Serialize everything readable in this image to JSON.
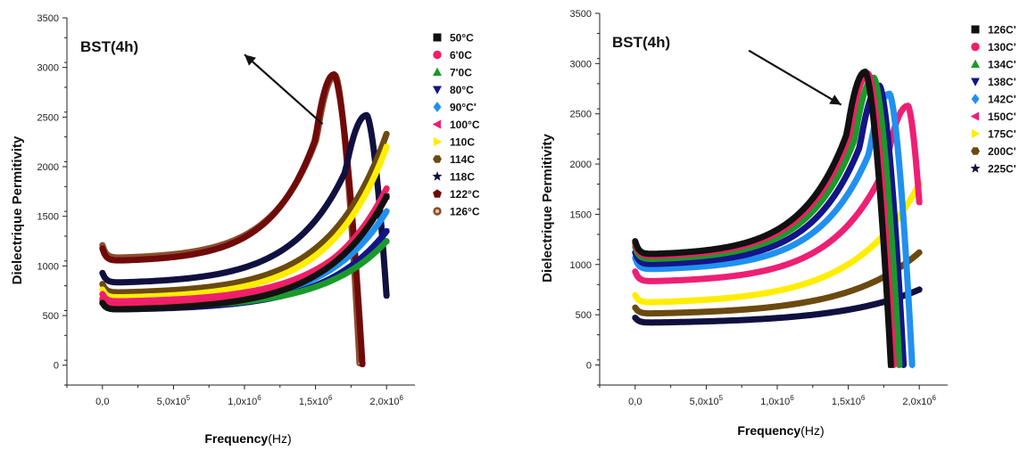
{
  "chart_data": [
    {
      "type": "line",
      "title": "BST(4h)",
      "xlabel_main": "Frequency",
      "xlabel_unit": "(Hz)",
      "ylabel": "Dielectrique Permitivity",
      "xlim": [
        -250000,
        2200000
      ],
      "ylim": [
        -200,
        3500
      ],
      "x_ticks": [
        {
          "value": 0,
          "label": "0,0"
        },
        {
          "value": 500000,
          "label": "5,0x10",
          "exp": "5"
        },
        {
          "value": 1000000,
          "label": "1,0x10",
          "exp": "6"
        },
        {
          "value": 1500000,
          "label": "1,5x10",
          "exp": "6"
        },
        {
          "value": 2000000,
          "label": "2,0x10",
          "exp": "6"
        }
      ],
      "y_ticks": [
        0,
        500,
        1000,
        1500,
        2000,
        2500,
        3000,
        3500
      ],
      "arrow": {
        "from": [
          1550000,
          2430
        ],
        "to": [
          1000000,
          3130
        ]
      },
      "series": [
        {
          "name": "50°C",
          "marker": "square",
          "color": "#111111",
          "base": 560,
          "rise": 1.12,
          "end_value": 1700,
          "xpeak": 2000000
        },
        {
          "name": "6'0C",
          "marker": "circle",
          "color": "#ee2060",
          "base": 600,
          "rise": 1.15,
          "end_value": 1780,
          "xpeak": 2000000
        },
        {
          "name": "7'0C",
          "marker": "triangle-up",
          "color": "#1a9a2a",
          "base": 580,
          "rise": 1.09,
          "end_value": 1250,
          "xpeak": 2000000
        },
        {
          "name": "80°C",
          "marker": "triangle-down",
          "color": "#141488",
          "base": 560,
          "rise": 1.1,
          "end_value": 1350,
          "xpeak": 2000000
        },
        {
          "name": "90°C'",
          "marker": "diamond",
          "color": "#2090f0",
          "base": 590,
          "rise": 1.13,
          "end_value": 1550,
          "xpeak": 2000000
        },
        {
          "name": "100°C",
          "marker": "triangle-left",
          "color": "#ee1f75",
          "base": 640,
          "rise": 1.12,
          "end_value": 1700,
          "xpeak": 2000000
        },
        {
          "name": "110C",
          "marker": "triangle-right",
          "color": "#ffee00",
          "base": 680,
          "rise": 1.2,
          "end_value": 2200,
          "xpeak": 2000000
        },
        {
          "name": "114C",
          "marker": "hexagon",
          "color": "#6b4a10",
          "base": 730,
          "rise": 1.2,
          "end_value": 2330,
          "xpeak": 2000000
        },
        {
          "name": "118C",
          "marker": "star",
          "color": "#101040",
          "base": 830,
          "rise": 1.2,
          "peak_value": 2520,
          "xpeak": 1860000,
          "x_end": 2000000,
          "end_value": 700
        },
        {
          "name": "122°C",
          "marker": "pentagon",
          "color": "#700a0a",
          "base": 1050,
          "rise": 1.25,
          "peak_value": 2930,
          "xpeak": 1630000,
          "x_end": 1830000,
          "end_value": 10
        },
        {
          "name": "126°C",
          "marker": "circle-dot",
          "color": "#8a5030",
          "base": 1080,
          "rise": 1.25,
          "peak_value": 2920,
          "xpeak": 1640000,
          "x_end": 1810000,
          "end_value": 20
        }
      ]
    },
    {
      "type": "line",
      "title": "BST(4h)",
      "xlabel_main": "Frequency",
      "xlabel_unit": "(Hz)",
      "ylabel": "Dielectrique Permitivity",
      "xlim": [
        -250000,
        2200000
      ],
      "ylim": [
        -200,
        3500
      ],
      "x_ticks": [
        {
          "value": 0,
          "label": "0,0"
        },
        {
          "value": 500000,
          "label": "5,0x10",
          "exp": "5"
        },
        {
          "value": 1000000,
          "label": "1,0x10",
          "exp": "6"
        },
        {
          "value": 1500000,
          "label": "1,5x10",
          "exp": "6"
        },
        {
          "value": 2000000,
          "label": "2,0x10",
          "exp": "6"
        }
      ],
      "y_ticks": [
        0,
        500,
        1000,
        1500,
        2000,
        2500,
        3000,
        3500
      ],
      "arrow": {
        "from": [
          800000,
          3130
        ],
        "to": [
          1450000,
          2590
        ]
      },
      "series": [
        {
          "name": "126C'",
          "marker": "square",
          "color": "#111111",
          "base": 1100,
          "rise": 1.22,
          "peak_value": 2920,
          "xpeak": 1620000,
          "x_end": 1800000,
          "end_value": 0
        },
        {
          "name": "130C'",
          "marker": "circle",
          "color": "#ee2060",
          "base": 1080,
          "rise": 1.22,
          "peak_value": 2900,
          "xpeak": 1640000,
          "x_end": 1820000,
          "end_value": 0
        },
        {
          "name": "134C'",
          "marker": "triangle-up",
          "color": "#1a9a2a",
          "base": 1050,
          "rise": 1.22,
          "peak_value": 2860,
          "xpeak": 1680000,
          "x_end": 1860000,
          "end_value": 0
        },
        {
          "name": "138C'",
          "marker": "triangle-down",
          "color": "#141488",
          "base": 1000,
          "rise": 1.22,
          "peak_value": 2780,
          "xpeak": 1720000,
          "x_end": 1890000,
          "end_value": 0
        },
        {
          "name": "142C'",
          "marker": "diamond",
          "color": "#2090f0",
          "base": 950,
          "rise": 1.22,
          "peak_value": 2700,
          "xpeak": 1790000,
          "x_end": 1950000,
          "end_value": 0
        },
        {
          "name": "150C'",
          "marker": "triangle-left",
          "color": "#ee1f75",
          "base": 830,
          "rise": 1.22,
          "peak_value": 2580,
          "xpeak": 1920000,
          "x_end": 2000000,
          "end_value": 1620
        },
        {
          "name": "175C'",
          "marker": "triangle-right",
          "color": "#ffee00",
          "base": 620,
          "rise": 1.05,
          "end_value": 1800,
          "xpeak": 2000000
        },
        {
          "name": "200C'",
          "marker": "hexagon",
          "color": "#6b4a10",
          "base": 510,
          "rise": 0.95,
          "end_value": 1120,
          "xpeak": 2000000
        },
        {
          "name": "225C'",
          "marker": "star",
          "color": "#101040",
          "base": 420,
          "rise": 0.85,
          "end_value": 750,
          "xpeak": 2000000
        }
      ]
    }
  ]
}
